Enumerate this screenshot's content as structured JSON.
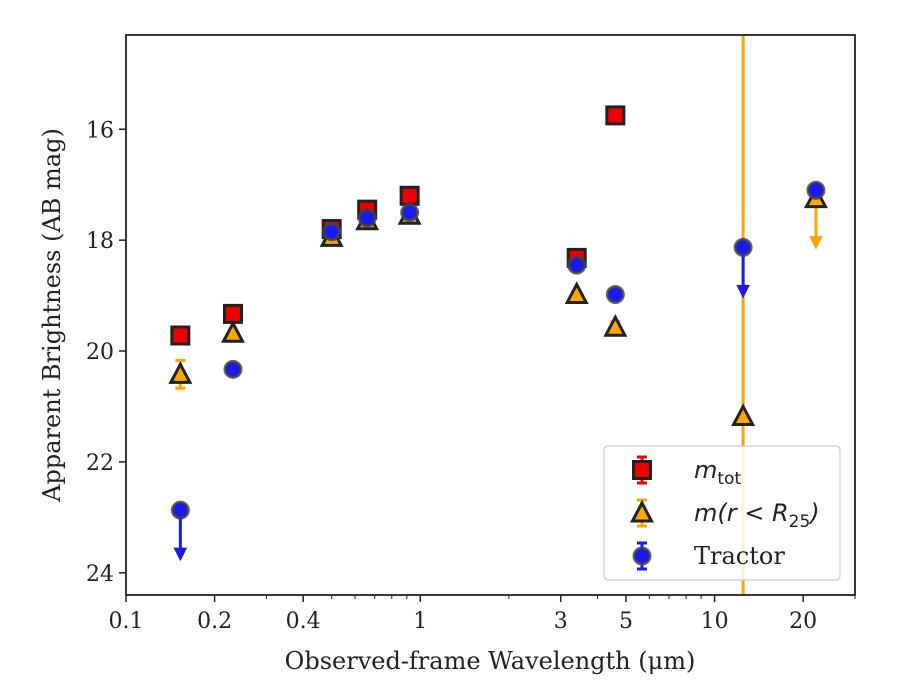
{
  "chart_data": {
    "type": "scatter",
    "xlabel": "Observed-frame Wavelength (μm)",
    "ylabel": "Apparent Brightness (AB mag)",
    "x_scale": "log",
    "xlim": [
      0.1,
      30
    ],
    "ylim": [
      24.4,
      14.3
    ],
    "y_inverted": true,
    "x_ticks": [
      {
        "value": 0.1,
        "label": "0.1"
      },
      {
        "value": 0.2,
        "label": "0.2"
      },
      {
        "value": 0.4,
        "label": "0.4"
      },
      {
        "value": 1,
        "label": "1"
      },
      {
        "value": 3,
        "label": "3"
      },
      {
        "value": 5,
        "label": "5"
      },
      {
        "value": 10,
        "label": "10"
      },
      {
        "value": 20,
        "label": "20"
      }
    ],
    "y_ticks": [
      {
        "value": 16,
        "label": "16"
      },
      {
        "value": 18,
        "label": "18"
      },
      {
        "value": 20,
        "label": "20"
      },
      {
        "value": 22,
        "label": "22"
      },
      {
        "value": 24,
        "label": "24"
      }
    ],
    "vline": {
      "x": 12.5,
      "color": "#FFA500"
    },
    "legend_position": "lower-right",
    "series": [
      {
        "name": "m_tot",
        "legend_main": "m",
        "legend_sub": "tot",
        "marker": "square",
        "face": "#ee0000",
        "edge": "#222222",
        "err_color": "#ee0000",
        "points": [
          {
            "x": 0.153,
            "y": 19.72,
            "err": 0.05
          },
          {
            "x": 0.231,
            "y": 19.33,
            "err": 0.05
          },
          {
            "x": 0.5,
            "y": 17.8,
            "err": 0.05
          },
          {
            "x": 0.66,
            "y": 17.45,
            "err": 0.05
          },
          {
            "x": 0.92,
            "y": 17.2,
            "err": 0.05
          },
          {
            "x": 3.4,
            "y": 18.32,
            "err": 0.05
          },
          {
            "x": 4.6,
            "y": 15.75,
            "err": 0.05
          }
        ]
      },
      {
        "name": "m(r < R25)",
        "legend_main": "m(r < R",
        "legend_sub": "25",
        "legend_tail": ")",
        "marker": "triangle",
        "face": "#FFA500",
        "edge": "#222222",
        "err_color": "#FFA500",
        "points": [
          {
            "x": 0.153,
            "y": 20.42,
            "err": 0.25
          },
          {
            "x": 0.231,
            "y": 19.68,
            "err": 0.05
          },
          {
            "x": 0.5,
            "y": 17.95,
            "err": 0.05
          },
          {
            "x": 0.66,
            "y": 17.65,
            "err": 0.05
          },
          {
            "x": 0.92,
            "y": 17.55,
            "err": 0.05
          },
          {
            "x": 3.4,
            "y": 18.98,
            "err": 0.05
          },
          {
            "x": 4.6,
            "y": 19.57,
            "err": 0.1
          },
          {
            "x": 12.5,
            "y": 21.18,
            "err": 0
          },
          {
            "x": 22.1,
            "y": 17.25,
            "upper_limit": true
          }
        ]
      },
      {
        "name": "Tractor",
        "legend_main": "Tractor",
        "marker": "circle",
        "face": "#1a1aee",
        "edge": "#444444",
        "err_color": "#1a1aee",
        "points": [
          {
            "x": 0.153,
            "y": 22.87,
            "upper_limit": true
          },
          {
            "x": 0.231,
            "y": 20.33,
            "err": 0.05
          },
          {
            "x": 0.5,
            "y": 17.85,
            "err": 0.05
          },
          {
            "x": 0.66,
            "y": 17.6,
            "err": 0.05
          },
          {
            "x": 0.92,
            "y": 17.5,
            "err": 0.05
          },
          {
            "x": 3.4,
            "y": 18.45,
            "err": 0.05
          },
          {
            "x": 4.6,
            "y": 18.98,
            "err": 0.05
          },
          {
            "x": 12.5,
            "y": 18.13,
            "upper_limit": true
          },
          {
            "x": 22.1,
            "y": 17.1,
            "err": 0.05
          }
        ]
      }
    ]
  }
}
